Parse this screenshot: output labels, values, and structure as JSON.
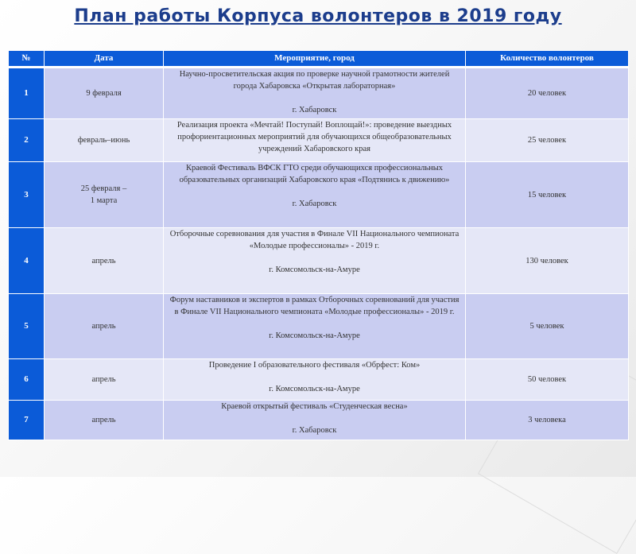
{
  "title": "План работы Корпуса волонтеров в 2019 году",
  "table": {
    "headers": [
      "№",
      "Дата",
      "Мероприятие, город",
      "Количество волонтеров"
    ],
    "rows": [
      {
        "num": "1",
        "date": "9 февраля",
        "event": "Научно-просветительская акция по проверке научной грамотности жителей города Хабаровска «Открытая лабораторная»\n\nг. Хабаровск",
        "volunteers": "20 человек"
      },
      {
        "num": "2",
        "date": "февраль–июнь",
        "event": "Реализация проекта «Мечтай! Поступай! Воплощай!»: проведение выездных профориентационных мероприятий для обучающихся общеобразовательных учреждений Хабаровского края",
        "volunteers": "25 человек"
      },
      {
        "num": "3",
        "date": "25 февраля –\n1 марта",
        "event": "Краевой Фестиваль ВФСК ГТО среди обучающихся профессиональных образовательных организаций Хабаровского края «Подтянись к движению»\n\nг. Хабаровск",
        "volunteers": "15 человек"
      },
      {
        "num": "4",
        "date": "апрель",
        "event": "Отборочные соревнования  для участия в Финале VII Национального чемпионата\n«Молодые профессионалы» - 2019 г.\n\nг. Комсомольск-на-Амуре",
        "volunteers": "130 человек"
      },
      {
        "num": "5",
        "date": "апрель",
        "event": "Форум наставников и экспертов в рамках Отборочных соревнований для участия в Финале VII Национального чемпионата «Молодые профессионалы» - 2019 г.\n\nг. Комсомольск-на-Амуре",
        "volunteers": "5 человек"
      },
      {
        "num": "6",
        "date": "апрель",
        "event": "Проведение I образовательного фестиваля «Обрфест: Ком»\n\nг. Комсомольск-на-Амуре",
        "volunteers": "50 человек"
      },
      {
        "num": "7",
        "date": "апрель",
        "event": "Краевой открытый фестиваль «Студенческая весна»\n\nг. Хабаровск",
        "volunteers": "3 человека"
      }
    ]
  },
  "colors": {
    "header": "#0b5bd8",
    "row_odd": "#c9cdf1",
    "row_even": "#e5e7f7",
    "title": "#1c3d8c"
  }
}
